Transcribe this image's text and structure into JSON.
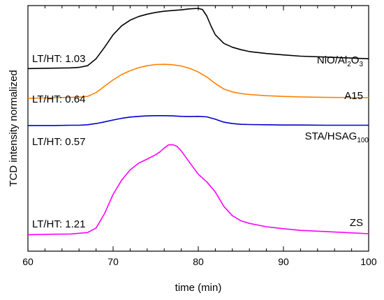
{
  "chart_data": {
    "type": "line",
    "xlabel": "time (min)",
    "ylabel": "TCD intensity normalized",
    "xlim": [
      60,
      100
    ],
    "ylim": [
      0,
      1
    ],
    "x_ticks": [
      "60",
      "70",
      "80",
      "90",
      "100"
    ],
    "y_ticks_shown": false,
    "grid": false,
    "legend": "none",
    "series": [
      {
        "name": "NiO/Al2O3",
        "label_base": "NiO/Al",
        "label_sub1": "2",
        "label_mid": "O",
        "label_sub2": "3",
        "annotation": "LT/HT: 1.03",
        "color": "#000000",
        "x": [
          60,
          63,
          65,
          66,
          67,
          68,
          69,
          70,
          71,
          72,
          73,
          74,
          75,
          76,
          77,
          78,
          79,
          80,
          80.5,
          81,
          81.5,
          82,
          83,
          84,
          85,
          86,
          88,
          90,
          92,
          95,
          100
        ],
        "y": [
          0.749,
          0.751,
          0.752,
          0.754,
          0.761,
          0.79,
          0.838,
          0.89,
          0.927,
          0.951,
          0.966,
          0.976,
          0.983,
          0.988,
          0.991,
          0.994,
          0.998,
          1.0,
          0.995,
          0.968,
          0.926,
          0.89,
          0.854,
          0.838,
          0.828,
          0.82,
          0.812,
          0.806,
          0.801,
          0.797,
          0.79
        ]
      },
      {
        "name": "A15",
        "annotation": "LT/HT: 0.64",
        "color": "#ff8000",
        "x": [
          60,
          63,
          65,
          66,
          67,
          68,
          69,
          70,
          71,
          72,
          73,
          74,
          75,
          76,
          77,
          78,
          79,
          80,
          81,
          82,
          83,
          84,
          85,
          86,
          88,
          90,
          92,
          95,
          100
        ],
        "y": [
          0.625,
          0.628,
          0.629,
          0.63,
          0.633,
          0.649,
          0.676,
          0.702,
          0.724,
          0.74,
          0.753,
          0.761,
          0.766,
          0.767,
          0.765,
          0.76,
          0.75,
          0.735,
          0.714,
          0.687,
          0.664,
          0.652,
          0.645,
          0.641,
          0.636,
          0.633,
          0.631,
          0.629,
          0.628
        ]
      },
      {
        "name": "STA/HSAG100",
        "label_base": "STA/HSAG",
        "label_sub1": "100",
        "annotation": "LT/HT: 0.57",
        "color": "#0000cc",
        "x": [
          60,
          63,
          65,
          66,
          67,
          68,
          69,
          70,
          71,
          72,
          73,
          74,
          75,
          76,
          77,
          78,
          79,
          80,
          81,
          82,
          83,
          84,
          85,
          86,
          88,
          90,
          92,
          95,
          100
        ],
        "y": [
          0.512,
          0.512,
          0.513,
          0.513,
          0.515,
          0.52,
          0.527,
          0.535,
          0.542,
          0.547,
          0.55,
          0.552,
          0.553,
          0.553,
          0.552,
          0.55,
          0.549,
          0.55,
          0.548,
          0.538,
          0.526,
          0.52,
          0.517,
          0.516,
          0.515,
          0.514,
          0.514,
          0.513,
          0.513
        ]
      },
      {
        "name": "ZS",
        "annotation": "LT/HT: 1.21",
        "color": "#ff00ff",
        "x": [
          60,
          63,
          65,
          67,
          68,
          69,
          70,
          71,
          72,
          73,
          74,
          75,
          75.5,
          76,
          76.5,
          77,
          77.5,
          78,
          79,
          80,
          81,
          82,
          83,
          84,
          85,
          86,
          88,
          90,
          92,
          95,
          100
        ],
        "y": [
          0.057,
          0.059,
          0.06,
          0.066,
          0.085,
          0.145,
          0.225,
          0.284,
          0.327,
          0.355,
          0.372,
          0.39,
          0.402,
          0.418,
          0.431,
          0.432,
          0.425,
          0.406,
          0.357,
          0.309,
          0.277,
          0.235,
          0.175,
          0.136,
          0.115,
          0.104,
          0.09,
          0.082,
          0.075,
          0.07,
          0.061
        ]
      }
    ]
  }
}
